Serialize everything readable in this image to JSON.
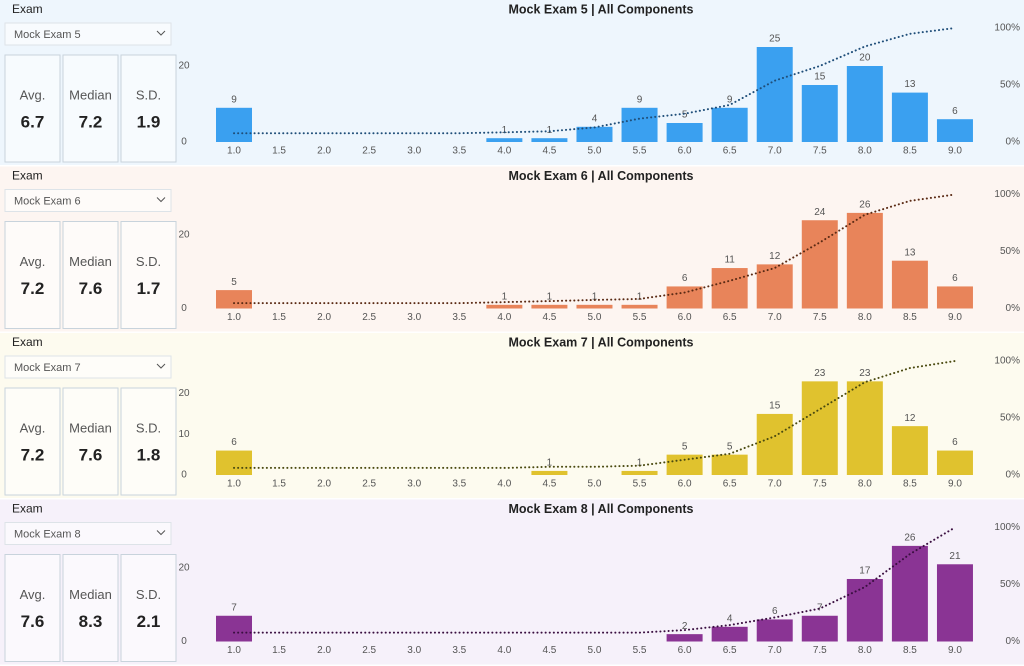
{
  "panels": [
    {
      "label": "Exam",
      "selected": "Mock Exam 5",
      "stats": [
        {
          "label": "Avg.",
          "value": 6.7
        },
        {
          "label": "Median",
          "value": 7.2
        },
        {
          "label": "S.D.",
          "value": 1.9
        }
      ]
    },
    {
      "label": "Exam",
      "selected": "Mock Exam 6",
      "stats": [
        {
          "label": "Avg.",
          "value": 7.2
        },
        {
          "label": "Median",
          "value": 7.6
        },
        {
          "label": "S.D.",
          "value": 1.7
        }
      ]
    },
    {
      "label": "Exam",
      "selected": "Mock Exam 7",
      "stats": [
        {
          "label": "Avg.",
          "value": 7.2
        },
        {
          "label": "Median",
          "value": 7.6
        },
        {
          "label": "S.D.",
          "value": 1.8
        }
      ]
    },
    {
      "label": "Exam",
      "selected": "Mock Exam 8",
      "stats": [
        {
          "label": "Avg.",
          "value": 7.6
        },
        {
          "label": "Median",
          "value": 8.3
        },
        {
          "label": "S.D.",
          "value": 2.1
        }
      ]
    }
  ],
  "chart_data": [
    {
      "type": "bar",
      "title": "Mock Exam 5 | All Components",
      "background": "#eef6fd",
      "categories": [
        "1.0",
        "1.5",
        "2.0",
        "2.5",
        "3.0",
        "3.5",
        "4.0",
        "4.5",
        "5.0",
        "5.5",
        "6.0",
        "6.5",
        "7.0",
        "7.5",
        "8.0",
        "8.5",
        "9.0"
      ],
      "series": [
        {
          "color": "#3aa0f0",
          "values": [
            9,
            0,
            0,
            0,
            0,
            0,
            1,
            1,
            4,
            9,
            5,
            9,
            25,
            15,
            20,
            13,
            6
          ]
        },
        {
          "type": "line",
          "axis": "y2",
          "color": "#1f4e79",
          "values": [
            7.7,
            7.7,
            7.7,
            7.7,
            7.7,
            7.7,
            8.5,
            9.4,
            12.8,
            20.5,
            24.8,
            32.5,
            53.8,
            66.7,
            83.8,
            94.9,
            100
          ]
        }
      ],
      "ylim": [
        0,
        30
      ],
      "yticks": [
        0,
        20
      ],
      "y2lim": [
        0,
        100
      ],
      "y2ticks": [
        {
          "value": 0,
          "label": "0%"
        },
        {
          "value": 50,
          "label": "50%"
        },
        {
          "value": 100,
          "label": "100%"
        }
      ]
    },
    {
      "type": "bar",
      "title": "Mock Exam 6 | All Components",
      "background": "#fdf5f1",
      "categories": [
        "1.0",
        "1.5",
        "2.0",
        "2.5",
        "3.0",
        "3.5",
        "4.0",
        "4.5",
        "5.0",
        "5.5",
        "6.0",
        "6.5",
        "7.0",
        "7.5",
        "8.0",
        "8.5",
        "9.0"
      ],
      "series": [
        {
          "color": "#e8845a",
          "values": [
            5,
            0,
            0,
            0,
            0,
            0,
            1,
            1,
            1,
            1,
            6,
            11,
            12,
            24,
            26,
            13,
            6
          ]
        },
        {
          "type": "line",
          "axis": "y2",
          "color": "#5a2a14",
          "values": [
            4.7,
            4.7,
            4.7,
            4.7,
            4.7,
            4.7,
            5.6,
            6.5,
            7.5,
            8.4,
            14.0,
            24.3,
            35.5,
            57.9,
            82.2,
            94.4,
            100
          ]
        }
      ],
      "ylim": [
        0,
        31
      ],
      "yticks": [
        0,
        20
      ],
      "y2lim": [
        0,
        100
      ],
      "y2ticks": [
        {
          "value": 0,
          "label": "0%"
        },
        {
          "value": 50,
          "label": "50%"
        },
        {
          "value": 100,
          "label": "100%"
        }
      ]
    },
    {
      "type": "bar",
      "title": "Mock Exam 7 | All Components",
      "background": "#fdfbef",
      "categories": [
        "1.0",
        "1.5",
        "2.0",
        "2.5",
        "3.0",
        "3.5",
        "4.0",
        "4.5",
        "5.0",
        "5.5",
        "6.0",
        "6.5",
        "7.0",
        "7.5",
        "8.0",
        "8.5",
        "9.0"
      ],
      "series": [
        {
          "color": "#e0c22e",
          "values": [
            6,
            0,
            0,
            0,
            0,
            0,
            0,
            1,
            0,
            1,
            5,
            5,
            15,
            23,
            23,
            12,
            6
          ]
        },
        {
          "type": "line",
          "axis": "y2",
          "color": "#4a4a10",
          "values": [
            6.2,
            6.2,
            6.2,
            6.2,
            6.2,
            6.2,
            6.2,
            7.2,
            7.2,
            8.2,
            13.4,
            18.6,
            34.0,
            57.7,
            81.4,
            93.8,
            100
          ]
        }
      ],
      "ylim": [
        0,
        28
      ],
      "yticks": [
        0,
        10,
        20
      ],
      "y2lim": [
        0,
        100
      ],
      "y2ticks": [
        {
          "value": 0,
          "label": "0%"
        },
        {
          "value": 50,
          "label": "50%"
        },
        {
          "value": 100,
          "label": "100%"
        }
      ]
    },
    {
      "type": "bar",
      "title": "Mock Exam 8 | All Components",
      "background": "#f6f1fa",
      "categories": [
        "1.0",
        "1.5",
        "2.0",
        "2.5",
        "3.0",
        "3.5",
        "4.0",
        "4.5",
        "5.0",
        "5.5",
        "6.0",
        "6.5",
        "7.0",
        "7.5",
        "8.0",
        "8.5",
        "9.0"
      ],
      "series": [
        {
          "color": "#8a3494",
          "values": [
            7,
            0,
            0,
            0,
            0,
            0,
            0,
            0,
            0,
            0,
            2,
            4,
            6,
            7,
            17,
            26,
            21
          ]
        },
        {
          "type": "line",
          "axis": "y2",
          "color": "#3a0f40",
          "values": [
            7.8,
            7.8,
            7.8,
            7.8,
            7.8,
            7.8,
            7.8,
            7.8,
            7.8,
            7.8,
            10.0,
            14.4,
            21.1,
            28.9,
            47.8,
            76.7,
            100
          ]
        }
      ],
      "ylim": [
        0,
        31
      ],
      "yticks": [
        0,
        20
      ],
      "y2lim": [
        0,
        100
      ],
      "y2ticks": [
        {
          "value": 0,
          "label": "0%"
        },
        {
          "value": 50,
          "label": "50%"
        },
        {
          "value": 100,
          "label": "100%"
        }
      ]
    }
  ]
}
